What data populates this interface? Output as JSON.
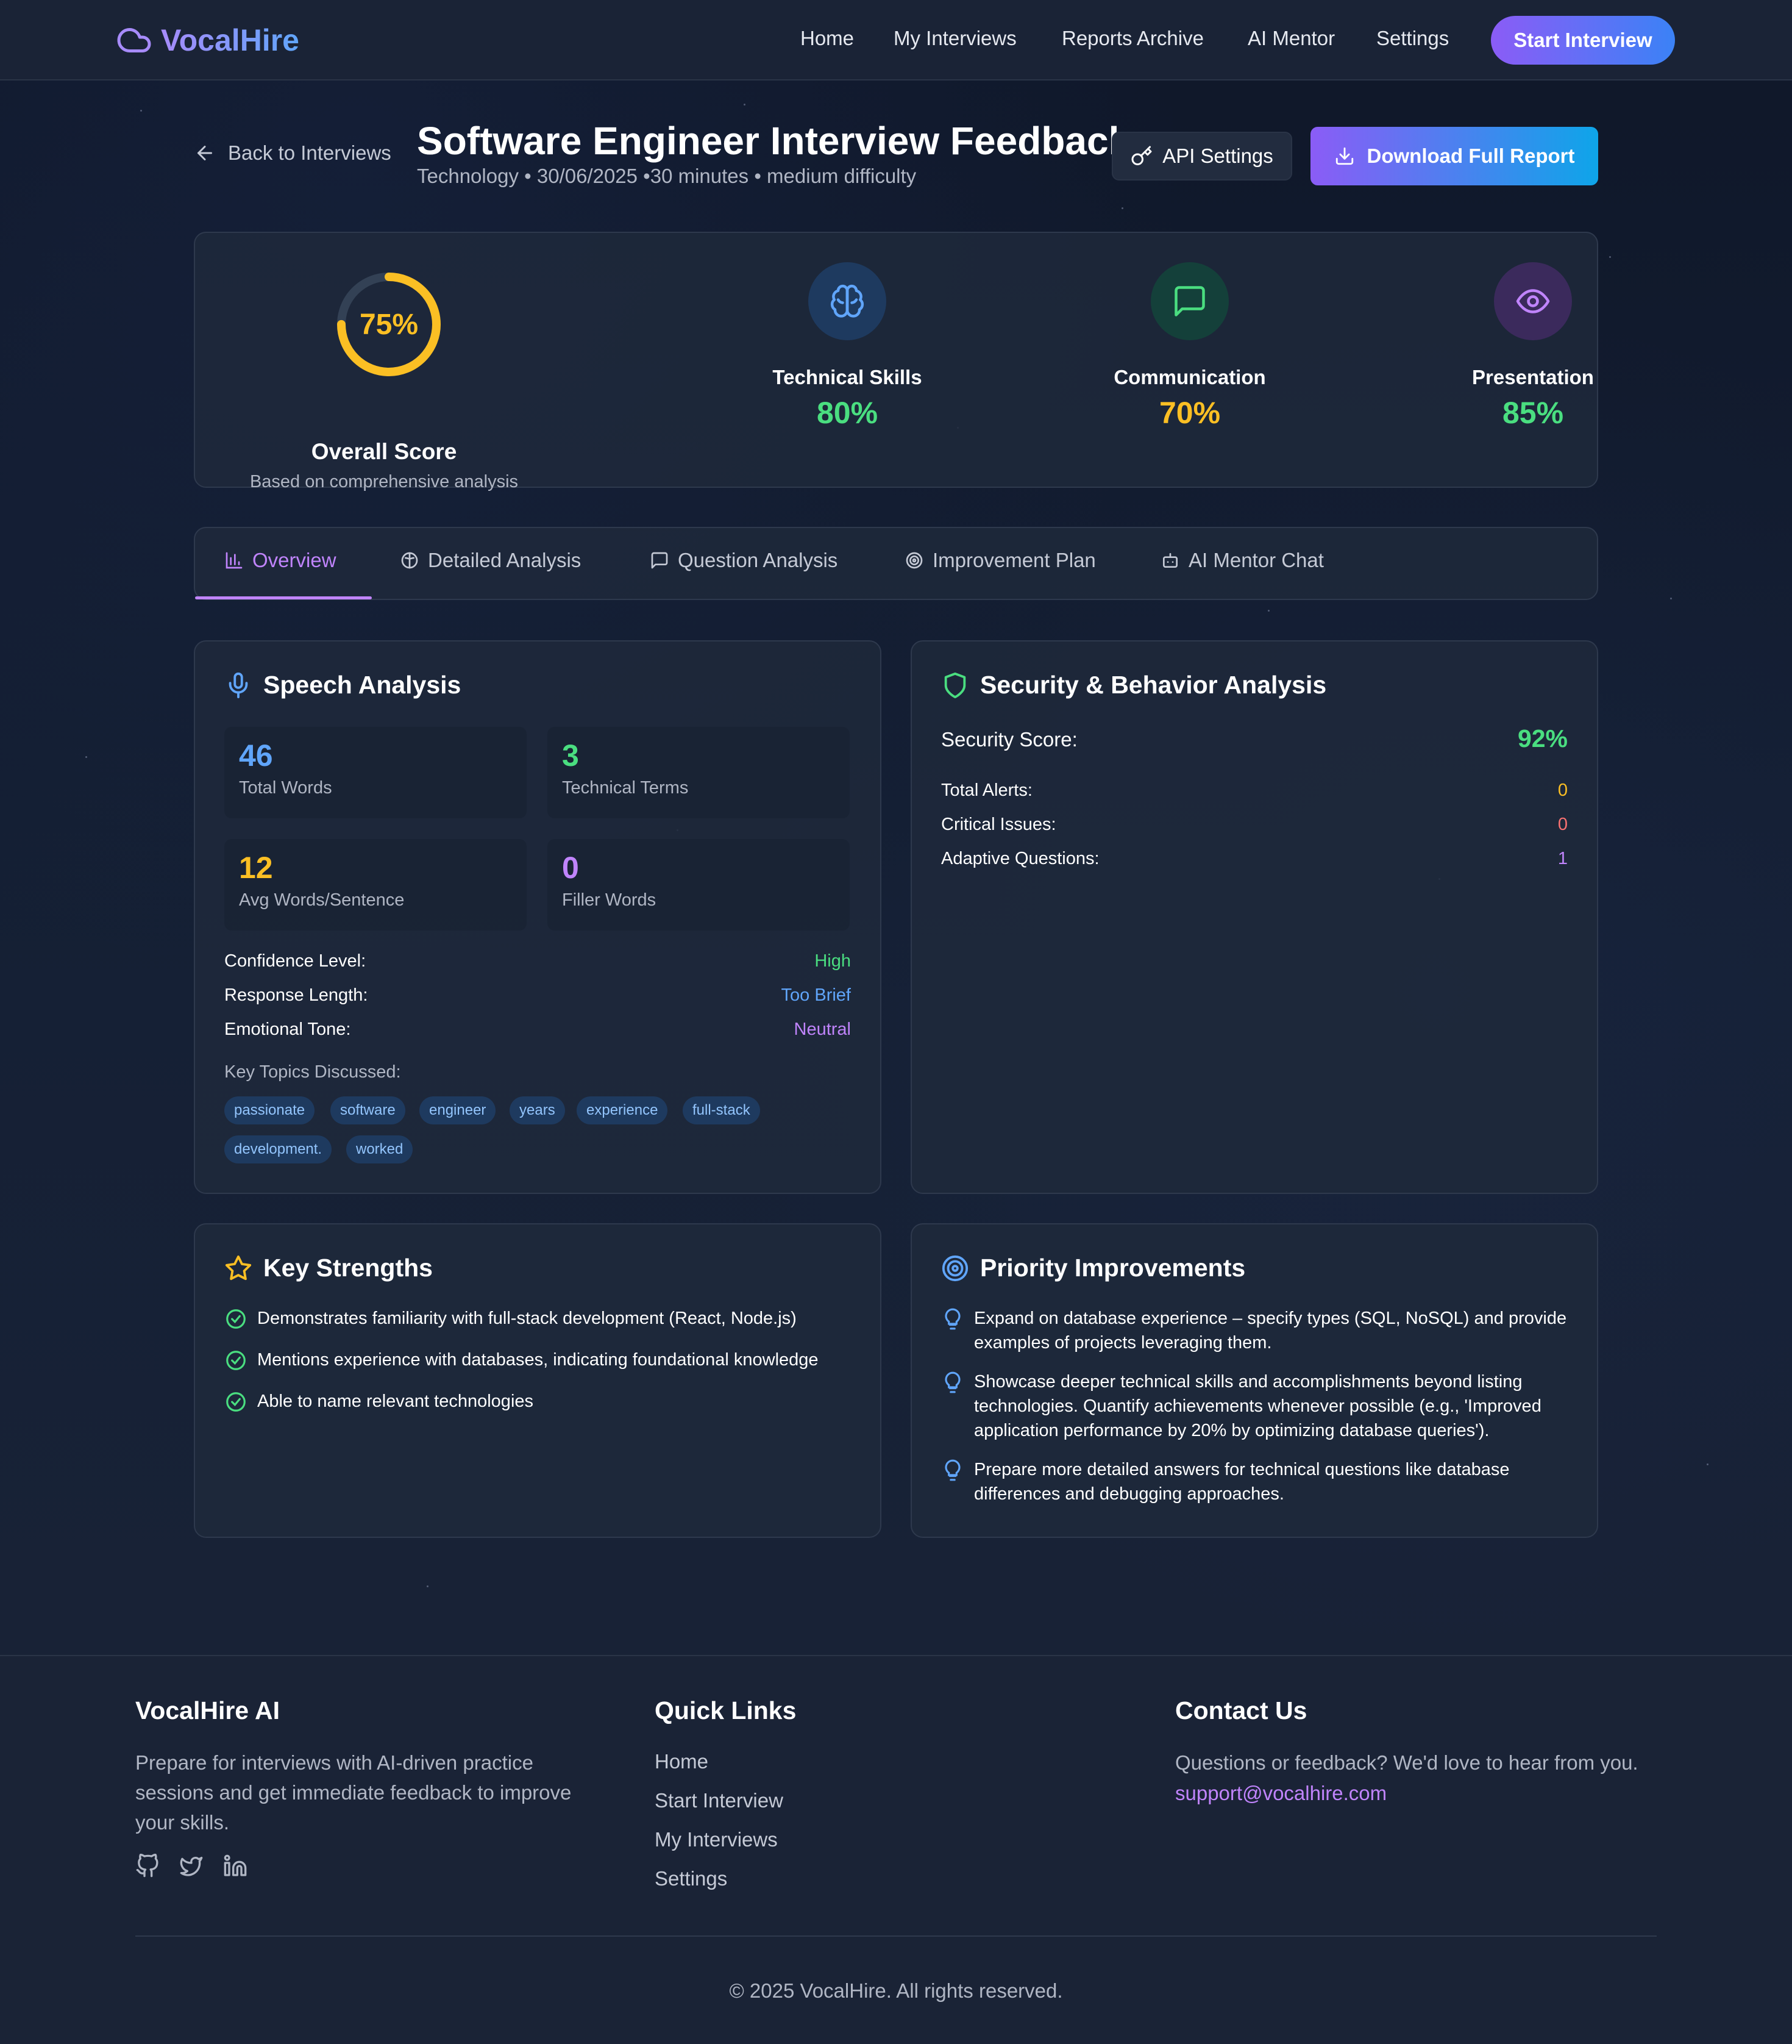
{
  "brand": {
    "name": "VocalHire"
  },
  "nav": {
    "items": [
      "Home",
      "My Interviews",
      "Reports Archive",
      "AI Mentor",
      "Settings"
    ],
    "cta": "Start Interview"
  },
  "header": {
    "back_label": "Back to Interviews",
    "title": "Software Engineer Interview Feedback",
    "subtitle": "Technology • 30/06/2025 •30 minutes • medium difficulty",
    "api_settings": "API Settings",
    "download": "Download Full Report"
  },
  "scores": {
    "overall": {
      "value": "75%",
      "percent": 75,
      "label": "Overall Score",
      "sub": "Based on comprehensive analysis",
      "color": "#fbbf24"
    },
    "metrics": [
      {
        "label": "Technical Skills",
        "value": "80%",
        "icon": "brain-icon",
        "color": "#4ade80",
        "bg": "#1e3a5f",
        "icon_color": "#60a5fa"
      },
      {
        "label": "Communication",
        "value": "70%",
        "icon": "message-square-icon",
        "color": "#fbbf24",
        "bg": "#14403a",
        "icon_color": "#4ade80"
      },
      {
        "label": "Presentation",
        "value": "85%",
        "icon": "eye-icon",
        "color": "#4ade80",
        "bg": "#3b2a5c",
        "icon_color": "#c084fc"
      }
    ]
  },
  "tabs": [
    {
      "label": "Overview",
      "icon": "bar-chart-icon",
      "active": true
    },
    {
      "label": "Detailed Analysis",
      "icon": "brain-icon",
      "active": false
    },
    {
      "label": "Question Analysis",
      "icon": "message-square-icon",
      "active": false
    },
    {
      "label": "Improvement Plan",
      "icon": "target-icon",
      "active": false
    },
    {
      "label": "AI Mentor Chat",
      "icon": "bot-icon",
      "active": false
    }
  ],
  "speech": {
    "title": "Speech Analysis",
    "stats": [
      {
        "value": "46",
        "label": "Total Words",
        "color": "#60a5fa"
      },
      {
        "value": "3",
        "label": "Technical Terms",
        "color": "#4ade80"
      },
      {
        "value": "12",
        "label": "Avg Words/Sentence",
        "color": "#fbbf24"
      },
      {
        "value": "0",
        "label": "Filler Words",
        "color": "#c084fc"
      }
    ],
    "rows": [
      {
        "key": "Confidence Level:",
        "value": "High",
        "color": "#4ade80"
      },
      {
        "key": "Response Length:",
        "value": "Too Brief",
        "color": "#60a5fa"
      },
      {
        "key": "Emotional Tone:",
        "value": "Neutral",
        "color": "#c084fc"
      }
    ],
    "topics_label": "Key Topics Discussed:",
    "topics": [
      "passionate",
      "software",
      "engineer",
      "years",
      "experience",
      "full-stack",
      "development.",
      "worked"
    ]
  },
  "security": {
    "title": "Security & Behavior Analysis",
    "score_label": "Security Score:",
    "score_value": "92%",
    "rows": [
      {
        "key": "Total Alerts:",
        "value": "0",
        "color": "#fbbf24"
      },
      {
        "key": "Critical Issues:",
        "value": "0",
        "color": "#f87171"
      },
      {
        "key": "Adaptive Questions:",
        "value": "1",
        "color": "#c084fc"
      }
    ]
  },
  "strengths": {
    "title": "Key Strengths",
    "items": [
      "Demonstrates familiarity with full-stack development (React, Node.js)",
      "Mentions experience with databases, indicating foundational knowledge",
      "Able to name relevant technologies"
    ]
  },
  "improvements": {
    "title": "Priority Improvements",
    "items": [
      "Expand on database experience – specify types (SQL, NoSQL) and provide examples of projects leveraging them.",
      "Showcase deeper technical skills and accomplishments beyond listing technologies. Quantify achievements whenever possible (e.g., 'Improved application performance by 20% by optimizing database queries').",
      "Prepare more detailed answers for technical questions like database differences and debugging approaches."
    ]
  },
  "footer": {
    "about_title": "VocalHire AI",
    "about_text": "Prepare for interviews with AI-driven practice sessions and get immediate feedback to improve your skills.",
    "links_title": "Quick Links",
    "links": [
      "Home",
      "Start Interview",
      "My Interviews",
      "Settings"
    ],
    "contact_title": "Contact Us",
    "contact_text": "Questions or feedback? We'd love to hear from you.",
    "email": "support@vocalhire.com",
    "copyright": "© 2025 VocalHire. All rights reserved.",
    "socials": [
      "github-icon",
      "twitter-icon",
      "linkedin-icon"
    ]
  }
}
